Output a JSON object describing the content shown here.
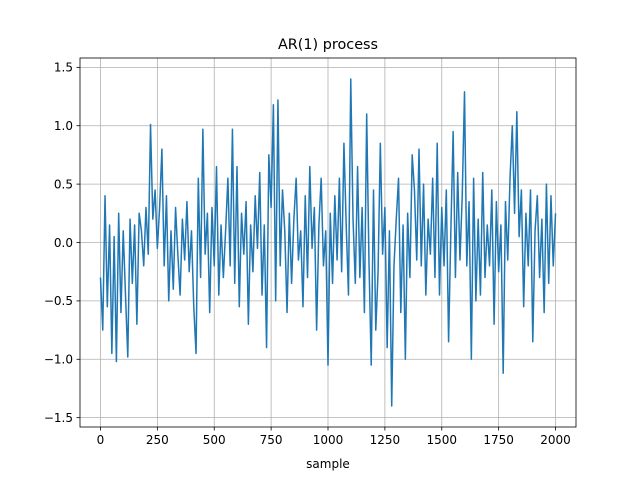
{
  "chart_data": {
    "type": "line",
    "title": "AR(1) process",
    "xlabel": "sample",
    "ylabel": "",
    "xlim": [
      -90,
      2090
    ],
    "ylim": [
      -1.58,
      1.58
    ],
    "x_ticks": [
      0,
      250,
      500,
      750,
      1000,
      1250,
      1500,
      1750,
      2000
    ],
    "x_tick_labels": [
      "0",
      "250",
      "500",
      "750",
      "1000",
      "1250",
      "1500",
      "1750",
      "2000"
    ],
    "y_ticks": [
      -1.5,
      -1.0,
      -0.5,
      0.0,
      0.5,
      1.0,
      1.5
    ],
    "y_tick_labels": [
      "−1.5",
      "−1.0",
      "−0.5",
      "0.0",
      "0.5",
      "1.0",
      "1.5"
    ],
    "grid": true,
    "legend": "none",
    "series": [
      {
        "color": "#1f77b4",
        "x": [
          0,
          10,
          20,
          30,
          40,
          50,
          60,
          70,
          80,
          90,
          100,
          110,
          120,
          130,
          140,
          150,
          160,
          170,
          180,
          190,
          200,
          210,
          220,
          230,
          240,
          250,
          260,
          270,
          280,
          290,
          300,
          310,
          320,
          330,
          340,
          350,
          360,
          370,
          380,
          390,
          400,
          410,
          420,
          430,
          440,
          450,
          460,
          470,
          480,
          490,
          500,
          510,
          520,
          530,
          540,
          550,
          560,
          570,
          580,
          590,
          600,
          610,
          620,
          630,
          640,
          650,
          660,
          670,
          680,
          690,
          700,
          710,
          720,
          730,
          740,
          750,
          760,
          770,
          780,
          790,
          800,
          810,
          820,
          830,
          840,
          850,
          860,
          870,
          880,
          890,
          900,
          910,
          920,
          930,
          940,
          950,
          960,
          970,
          980,
          990,
          1000,
          1010,
          1020,
          1030,
          1040,
          1050,
          1060,
          1070,
          1080,
          1090,
          1100,
          1110,
          1120,
          1130,
          1140,
          1150,
          1160,
          1170,
          1180,
          1190,
          1200,
          1210,
          1220,
          1230,
          1240,
          1250,
          1260,
          1270,
          1280,
          1290,
          1300,
          1310,
          1320,
          1330,
          1340,
          1350,
          1360,
          1370,
          1380,
          1390,
          1400,
          1410,
          1420,
          1430,
          1440,
          1450,
          1460,
          1470,
          1480,
          1490,
          1500,
          1510,
          1520,
          1530,
          1540,
          1550,
          1560,
          1570,
          1580,
          1590,
          1600,
          1610,
          1620,
          1630,
          1640,
          1650,
          1660,
          1670,
          1680,
          1690,
          1700,
          1710,
          1720,
          1730,
          1740,
          1750,
          1760,
          1770,
          1780,
          1790,
          1800,
          1810,
          1820,
          1830,
          1840,
          1850,
          1860,
          1870,
          1880,
          1890,
          1900,
          1910,
          1920,
          1930,
          1940,
          1950,
          1960,
          1970,
          1980,
          1990,
          2000
        ],
        "y": [
          -0.3,
          -0.75,
          0.4,
          -0.55,
          0.15,
          -0.95,
          0.05,
          -1.02,
          0.25,
          -0.6,
          0.1,
          -0.45,
          -0.98,
          0.2,
          -0.35,
          0.15,
          -0.7,
          0.25,
          0.1,
          -0.2,
          0.3,
          -0.1,
          1.01,
          0.2,
          0.45,
          -0.05,
          0.3,
          0.8,
          -0.2,
          0.4,
          -0.5,
          0.1,
          -0.4,
          0.3,
          -0.1,
          -0.45,
          0.2,
          -0.15,
          0.35,
          -0.25,
          0.1,
          -0.55,
          -0.95,
          0.55,
          -0.3,
          0.97,
          -0.1,
          0.25,
          -0.6,
          0.3,
          -0.2,
          0.65,
          -0.45,
          0.15,
          -0.3,
          0.1,
          0.55,
          -0.2,
          0.97,
          -0.35,
          0.65,
          -0.55,
          0.25,
          -0.1,
          0.35,
          -0.7,
          0.15,
          -0.25,
          0.4,
          -0.05,
          0.6,
          -0.45,
          0.15,
          -0.9,
          0.75,
          0.3,
          1.18,
          -0.5,
          1.22,
          -0.2,
          0.45,
          0.1,
          -0.6,
          0.25,
          -0.35,
          0.2,
          0.55,
          -0.15,
          0.1,
          -0.55,
          0.4,
          -0.3,
          0.65,
          -0.05,
          0.3,
          -0.75,
          0.15,
          0.55,
          -0.2,
          0.1,
          -1.05,
          0.25,
          -0.35,
          0.4,
          -0.15,
          0.55,
          -0.25,
          0.85,
          0.15,
          -0.45,
          1.4,
          0.2,
          -0.35,
          0.65,
          -0.3,
          0.3,
          -0.6,
          1.1,
          -0.15,
          -1.05,
          0.45,
          -0.75,
          -0.25,
          0.85,
          -0.1,
          0.3,
          -0.9,
          0.1,
          -1.4,
          -0.2,
          0.2,
          0.55,
          -0.6,
          0.15,
          -1.0,
          0.25,
          -0.3,
          0.75,
          0.45,
          -0.15,
          0.8,
          -0.2,
          0.5,
          -0.45,
          0.2,
          -0.1,
          0.55,
          -0.3,
          0.85,
          -0.45,
          0.3,
          -0.2,
          0.45,
          -0.85,
          0.1,
          0.95,
          -0.3,
          0.6,
          -0.15,
          0.4,
          1.29,
          -0.2,
          0.35,
          -1.0,
          0.55,
          -0.5,
          0.2,
          -0.45,
          0.6,
          -0.3,
          0.15,
          -0.2,
          0.45,
          -0.7,
          0.35,
          -0.25,
          0.15,
          -1.12,
          0.35,
          -0.15,
          0.55,
          1.0,
          0.25,
          1.12,
          0.05,
          0.45,
          -0.55,
          0.25,
          -0.2,
          0.45,
          -0.85,
          0.1,
          0.4,
          -0.3,
          0.2,
          -0.6,
          0.5,
          -0.35,
          0.4,
          -0.2,
          0.25
        ]
      }
    ]
  }
}
